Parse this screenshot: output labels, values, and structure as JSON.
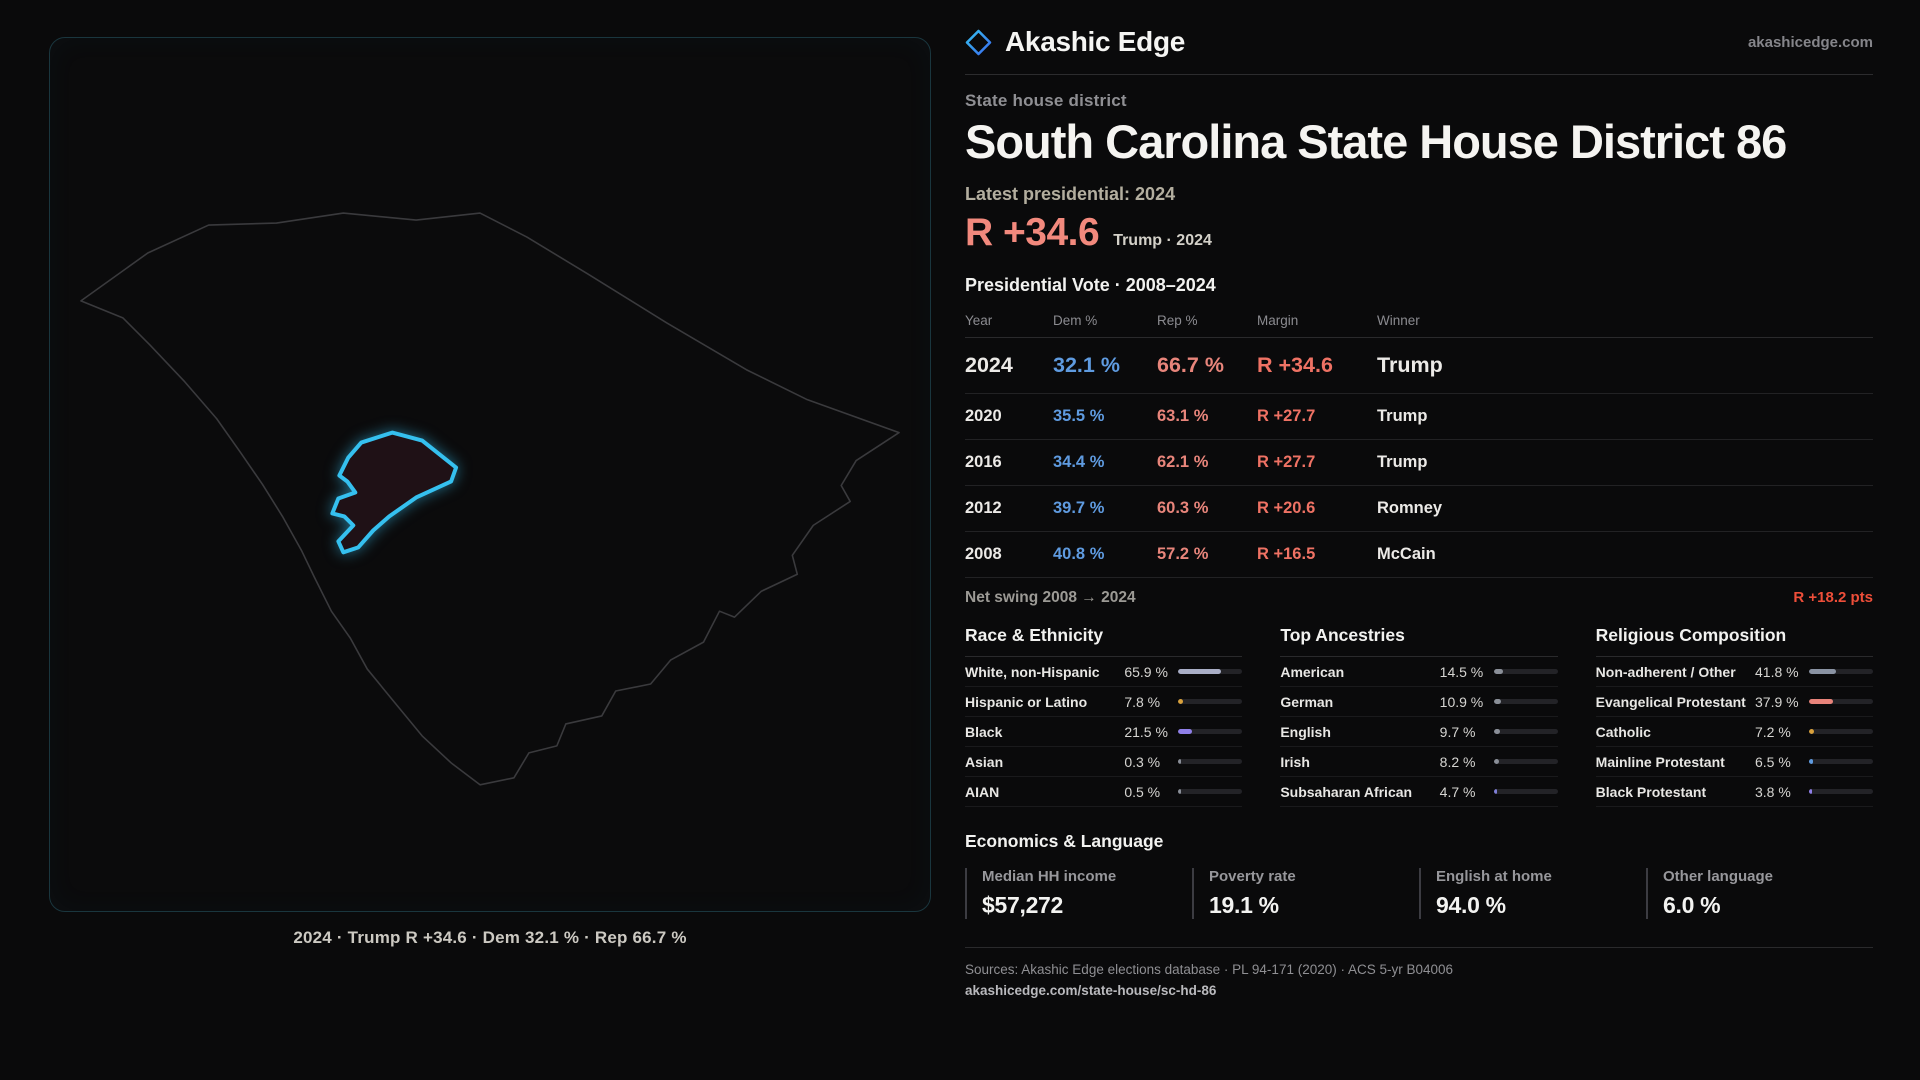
{
  "brand": {
    "name": "Akashic Edge",
    "domain": "akashicedge.com"
  },
  "header": {
    "kicker": "State house district",
    "title": "South Carolina State House District 86",
    "latest_label": "Latest presidential: 2024",
    "headline_margin": "R +34.6",
    "headline_sub": "Trump · 2024"
  },
  "map": {
    "caption": "2024 · Trump R +34.6 · Dem 32.1 % · Rep 66.7 %"
  },
  "table": {
    "title": "Presidential Vote · 2008–2024",
    "columns": {
      "year": "Year",
      "dem": "Dem %",
      "rep": "Rep %",
      "margin": "Margin",
      "winner": "Winner"
    },
    "rows": [
      {
        "year": "2024",
        "dem": "32.1 %",
        "rep": "66.7 %",
        "margin": "R +34.6",
        "winner": "Trump"
      },
      {
        "year": "2020",
        "dem": "35.5 %",
        "rep": "63.1 %",
        "margin": "R +27.7",
        "winner": "Trump"
      },
      {
        "year": "2016",
        "dem": "34.4 %",
        "rep": "62.1 %",
        "margin": "R +27.7",
        "winner": "Trump"
      },
      {
        "year": "2012",
        "dem": "39.7 %",
        "rep": "60.3 %",
        "margin": "R +20.6",
        "winner": "Romney"
      },
      {
        "year": "2008",
        "dem": "40.8 %",
        "rep": "57.2 %",
        "margin": "R +16.5",
        "winner": "McCain"
      }
    ]
  },
  "swing": {
    "label": "Net swing 2008 → 2024",
    "value": "R +18.2 pts"
  },
  "race": {
    "title": "Race & Ethnicity",
    "items": [
      {
        "label": "White, non-Hispanic",
        "value": "65.9 %",
        "pct": 65.9,
        "color": "#a9aec6"
      },
      {
        "label": "Hispanic or Latino",
        "value": "7.8 %",
        "pct": 7.8,
        "color": "#d9a13c"
      },
      {
        "label": "Black",
        "value": "21.5 %",
        "pct": 21.5,
        "color": "#8f7fe8"
      },
      {
        "label": "Asian",
        "value": "0.3 %",
        "pct": 0.3,
        "color": "#8a8f98"
      },
      {
        "label": "AIAN",
        "value": "0.5 %",
        "pct": 0.5,
        "color": "#8a8f98"
      }
    ]
  },
  "ancestries": {
    "title": "Top Ancestries",
    "items": [
      {
        "label": "American",
        "value": "14.5 %",
        "pct": 14.5,
        "color": "#8a8f98"
      },
      {
        "label": "German",
        "value": "10.9 %",
        "pct": 10.9,
        "color": "#8a8f98"
      },
      {
        "label": "English",
        "value": "9.7 %",
        "pct": 9.7,
        "color": "#8a8f98"
      },
      {
        "label": "Irish",
        "value": "8.2 %",
        "pct": 8.2,
        "color": "#8a8f98"
      },
      {
        "label": "Subsaharan African",
        "value": "4.7 %",
        "pct": 4.7,
        "color": "#7f7fd8"
      }
    ]
  },
  "religion": {
    "title": "Religious Composition",
    "items": [
      {
        "label": "Non-adherent / Other",
        "value": "41.8 %",
        "pct": 41.8,
        "color": "#8a93a3"
      },
      {
        "label": "Evangelical Protestant",
        "value": "37.9 %",
        "pct": 37.9,
        "color": "#e8837a"
      },
      {
        "label": "Catholic",
        "value": "7.2 %",
        "pct": 7.2,
        "color": "#d9a13c"
      },
      {
        "label": "Mainline Protestant",
        "value": "6.5 %",
        "pct": 6.5,
        "color": "#5f9be0"
      },
      {
        "label": "Black Protestant",
        "value": "3.8 %",
        "pct": 3.8,
        "color": "#8f7fe8"
      }
    ]
  },
  "economics": {
    "title": "Economics & Language",
    "stats": [
      {
        "label": "Median HH income",
        "value": "$57,272"
      },
      {
        "label": "Poverty rate",
        "value": "19.1 %"
      },
      {
        "label": "English at home",
        "value": "94.0 %"
      },
      {
        "label": "Other language",
        "value": "6.0 %"
      }
    ]
  },
  "footer": {
    "sources": "Sources: Akashic Edge elections database · PL 94-171 (2020) · ACS 5-yr B04006",
    "link": "akashicedge.com/state-house/sc-hd-86"
  }
}
